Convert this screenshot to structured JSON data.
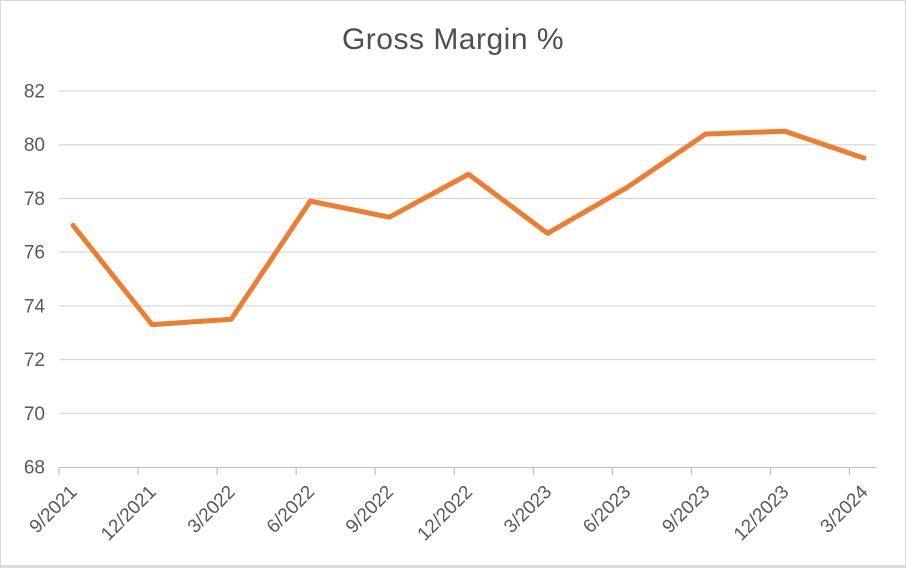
{
  "chart_data": {
    "type": "line",
    "title": "Gross Margin %",
    "xlabel": "",
    "ylabel": "",
    "categories": [
      "9/2021",
      "12/2021",
      "3/2022",
      "6/2022",
      "9/2022",
      "12/2022",
      "3/2023",
      "6/2023",
      "9/2023",
      "12/2023",
      "3/2024"
    ],
    "series": [
      {
        "name": "Gross Margin %",
        "values": [
          77.0,
          73.3,
          73.5,
          77.9,
          77.3,
          78.9,
          76.7,
          78.4,
          80.4,
          80.5,
          79.5
        ],
        "color": "#ED7D31"
      }
    ],
    "ylim": [
      68,
      82
    ],
    "ytick_step": 2,
    "yticks": [
      68,
      70,
      72,
      74,
      76,
      78,
      80,
      82
    ],
    "grid": true,
    "legend": "none",
    "x_label_rotation_deg": -45,
    "style": {
      "line_color": "#ED7D31",
      "gridline_color": "#D9D9D9",
      "axis_color": "#C3C3C3",
      "label_color": "#595959",
      "title_color": "#4F4F4F",
      "frame_border": "#D8D8D8",
      "frame_border_bottom": "#D6DCE2",
      "background": "#FFFFFF"
    }
  }
}
